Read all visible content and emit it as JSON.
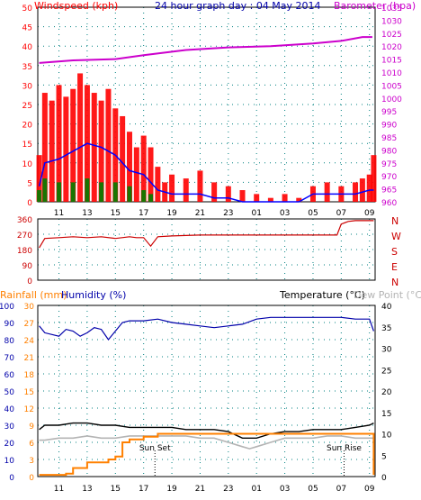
{
  "title": "24 hour graph day : 04 May 2014",
  "colors": {
    "wind_gust": "#ff0000",
    "wind_avg": "#0000ff",
    "wind_low": "#008000",
    "barometer": "#cc00cc",
    "wind_dir": "#cc0000",
    "rainfall": "#ff8000",
    "humidity": "#0000aa",
    "temperature": "#000000",
    "dewpoint": "#b4b4b4",
    "grid": "#008080",
    "frame": "#000000",
    "sun_marker": "#000000"
  },
  "hour_ticks": [
    "11",
    "13",
    "15",
    "17",
    "19",
    "21",
    "23",
    "01",
    "03",
    "05",
    "07",
    "09"
  ],
  "chart_data": [
    {
      "type": "line",
      "title": "24 hour graph day : 04 May 2014",
      "left_axis_label": "Windspeed (kph)",
      "right_axis_label": "Barometer (hpa)",
      "left_ticks": [
        "0",
        "5",
        "10",
        "15",
        "20",
        "25",
        "30",
        "35",
        "40",
        "45",
        "50"
      ],
      "right_ticks": [
        "960",
        "965",
        "970",
        "975",
        "980",
        "985",
        "990",
        "995",
        "1000",
        "1005",
        "1010",
        "1015",
        "1020",
        "1025",
        "1030",
        "1035"
      ],
      "left_range": [
        0,
        50
      ],
      "right_range": [
        960,
        1035
      ],
      "x_range_hours": [
        9.5,
        33.4
      ],
      "grid": true,
      "series": [
        {
          "key": "barometer",
          "axis": "right",
          "x": [
            9.6,
            12,
            15,
            17,
            20,
            23,
            26,
            29,
            31,
            32.5,
            33.2
          ],
          "values": [
            1013.5,
            1014.5,
            1015.0,
            1016.5,
            1018.5,
            1019.5,
            1020.0,
            1021.0,
            1022.0,
            1023.5,
            1023.5
          ]
        },
        {
          "key": "wind_gust",
          "axis": "left",
          "x": [
            9.6,
            10,
            10.5,
            11,
            11.5,
            12,
            12.5,
            13,
            13.5,
            14,
            14.5,
            15,
            15.5,
            16,
            16.5,
            17,
            17.5,
            18,
            18.5,
            19,
            20,
            21,
            22,
            23,
            24,
            25,
            26,
            27,
            28,
            29,
            30,
            31,
            32,
            32.5,
            33,
            33.3
          ],
          "values": [
            12,
            28,
            26,
            30,
            27,
            29,
            33,
            30,
            28,
            26,
            29,
            24,
            22,
            18,
            14,
            17,
            14,
            9,
            5,
            7,
            6,
            8,
            5,
            4,
            3,
            2,
            1,
            2,
            1,
            4,
            5,
            4,
            5,
            6,
            7,
            12
          ]
        },
        {
          "key": "wind_avg",
          "axis": "left",
          "x": [
            9.6,
            10,
            11,
            12,
            13,
            14,
            15,
            16,
            17,
            17.5,
            18,
            19,
            20,
            21,
            22,
            23,
            24,
            28,
            29,
            30,
            31,
            32,
            33,
            33.3
          ],
          "values": [
            4,
            10,
            11,
            13,
            15,
            14,
            12,
            8,
            7,
            5,
            3,
            2,
            2,
            2,
            1,
            1,
            0,
            0,
            2,
            2,
            2,
            2,
            3,
            3
          ]
        },
        {
          "key": "wind_low",
          "axis": "left",
          "x": [
            9.6,
            10,
            11,
            12,
            13,
            14,
            15,
            16,
            17,
            17.5,
            18
          ],
          "values": [
            3,
            6,
            5,
            5,
            6,
            5,
            5,
            4,
            3,
            2,
            0
          ]
        }
      ]
    },
    {
      "type": "scatter",
      "right_axis_label": "N W S E N",
      "right_labels": [
        "N",
        "W",
        "S",
        "E",
        "N"
      ],
      "left_ticks": [
        "0",
        "90",
        "180",
        "270",
        "360"
      ],
      "y_range": [
        0,
        360
      ],
      "x_range_hours": [
        9.5,
        33.4
      ],
      "grid": true,
      "series": [
        {
          "key": "wind_dir",
          "x": [
            9.6,
            10,
            11,
            12,
            13,
            14,
            15,
            16,
            16.5,
            17,
            17.5,
            18,
            19,
            21,
            23,
            25,
            27,
            29,
            30.7,
            31,
            31.5,
            32,
            33,
            33.3
          ],
          "values": [
            190,
            245,
            250,
            255,
            250,
            255,
            245,
            255,
            250,
            250,
            200,
            255,
            260,
            265,
            265,
            265,
            265,
            265,
            265,
            330,
            345,
            350,
            350,
            350
          ]
        }
      ]
    },
    {
      "type": "line",
      "left_axis_label_1": "Rainfall (mm)",
      "left_axis_label_2": "Humidity (%)",
      "right_axis_label_1": "Temperature (°C)",
      "right_axis_label_2": "Dew Point (°C)",
      "humidity_ticks": [
        "0",
        "10",
        "20",
        "30",
        "40",
        "50",
        "60",
        "70",
        "80",
        "90",
        "100"
      ],
      "rain_ticks": [
        "0",
        "3",
        "6",
        "9",
        "12",
        "15",
        "18",
        "21",
        "24",
        "27",
        "30"
      ],
      "temp_ticks": [
        "0",
        "5",
        "10",
        "15",
        "20",
        "25",
        "30",
        "35",
        "40"
      ],
      "humidity_range": [
        0,
        100
      ],
      "rain_range": [
        0,
        30
      ],
      "temp_range": [
        0,
        40
      ],
      "x_range_hours": [
        9.5,
        33.4
      ],
      "grid": true,
      "annotations": [
        {
          "label": "Sun Set",
          "hour": 17.8
        },
        {
          "label": "Sun Rise",
          "hour": 31.2
        }
      ],
      "series": [
        {
          "key": "humidity",
          "axis": "humidity",
          "x": [
            9.6,
            10,
            11,
            11.5,
            12,
            12.5,
            13,
            13.5,
            14,
            14.5,
            15,
            15.5,
            16,
            17,
            18,
            19,
            20,
            21,
            22,
            23,
            24,
            25,
            26,
            27,
            28,
            29,
            30,
            31,
            32,
            33,
            33.3
          ],
          "values": [
            88,
            84,
            82,
            86,
            85,
            82,
            84,
            87,
            86,
            80,
            85,
            90,
            91,
            91,
            92,
            90,
            89,
            88,
            87,
            88,
            89,
            92,
            93,
            93,
            93,
            93,
            93,
            93,
            92,
            92,
            85
          ]
        },
        {
          "key": "rainfall",
          "axis": "rain",
          "x": [
            9.6,
            11.5,
            12,
            13,
            14.5,
            15,
            15.5,
            16,
            17,
            18,
            20,
            22,
            24,
            26,
            28,
            30,
            31,
            32,
            33,
            33.1,
            33.3
          ],
          "values": [
            0.3,
            0.5,
            1.5,
            2.5,
            3.0,
            3.5,
            6.0,
            6.5,
            7.0,
            7.5,
            7.5,
            7.5,
            7.5,
            7.5,
            7.5,
            7.5,
            7.5,
            7.5,
            7.5,
            7.5,
            0.3
          ]
        },
        {
          "key": "temperature",
          "axis": "temp",
          "x": [
            9.6,
            10,
            11,
            12,
            13,
            14,
            15,
            16,
            17,
            18,
            19,
            20,
            21,
            22,
            23,
            24,
            25,
            26,
            27,
            28,
            29,
            30,
            31,
            32,
            33,
            33.3
          ],
          "values": [
            11,
            12,
            12,
            12.5,
            12.5,
            12,
            12,
            11.5,
            11.5,
            11.5,
            11.5,
            11,
            11,
            11,
            10.5,
            9,
            9,
            10,
            10.5,
            10.5,
            11,
            11,
            11,
            11.5,
            12,
            12.5
          ]
        },
        {
          "key": "dewpoint",
          "axis": "temp",
          "x": [
            9.6,
            10,
            11,
            12,
            13,
            14,
            15,
            16,
            17,
            18,
            19,
            20,
            21,
            22,
            23,
            24,
            24.5,
            25,
            26,
            27,
            28,
            29,
            30,
            31,
            32,
            33,
            33.3
          ],
          "values": [
            8.5,
            8.5,
            9,
            9,
            9.5,
            9,
            9,
            9.5,
            9.5,
            9.5,
            9.5,
            9.5,
            9,
            9,
            8,
            7,
            6.5,
            7,
            8,
            9,
            9,
            9,
            9.5,
            9.5,
            9,
            9,
            9
          ]
        }
      ]
    }
  ]
}
